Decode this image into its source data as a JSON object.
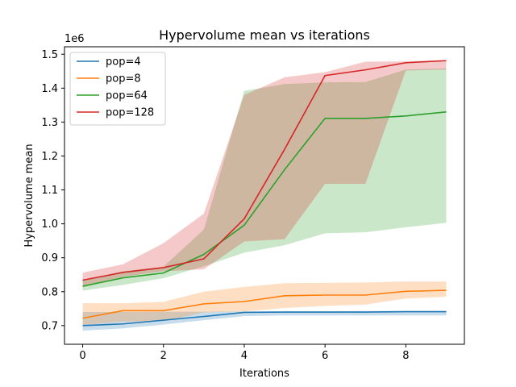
{
  "chart_data": {
    "type": "line",
    "title": "Hypervolume mean vs iterations",
    "xlabel": "Iterations",
    "ylabel": "Hypervolume mean",
    "y_offset_text": "1e6",
    "xlim": [
      -0.45,
      9.45
    ],
    "ylim": [
      0.645,
      1.522
    ],
    "x_ticks": [
      0,
      2,
      4,
      6,
      8
    ],
    "y_ticks": [
      0.7,
      0.8,
      0.9,
      1.0,
      1.1,
      1.2,
      1.3,
      1.4,
      1.5
    ],
    "y_tick_labels": [
      "0.7",
      "0.8",
      "0.9",
      "1.0",
      "1.1",
      "1.2",
      "1.3",
      "1.4",
      "1.5"
    ],
    "grid": false,
    "legend_position": "top-left",
    "x": [
      0,
      1,
      2,
      3,
      4,
      5,
      6,
      7,
      8,
      9
    ],
    "series": [
      {
        "name": "pop=4",
        "color": "#1f77b4",
        "values": [
          0.7,
          0.705,
          0.716,
          0.727,
          0.739,
          0.74,
          0.74,
          0.74,
          0.741,
          0.741
        ],
        "lower": [
          0.685,
          0.692,
          0.703,
          0.716,
          0.728,
          0.73,
          0.73,
          0.73,
          0.73,
          0.73
        ],
        "upper": [
          0.74,
          0.74,
          0.741,
          0.741,
          0.742,
          0.742,
          0.742,
          0.743,
          0.743,
          0.743
        ]
      },
      {
        "name": "pop=8",
        "color": "#ff7f0e",
        "values": [
          0.722,
          0.744,
          0.744,
          0.764,
          0.771,
          0.788,
          0.79,
          0.79,
          0.801,
          0.804
        ],
        "lower": [
          0.702,
          0.712,
          0.713,
          0.739,
          0.742,
          0.752,
          0.758,
          0.762,
          0.78,
          0.785
        ],
        "upper": [
          0.766,
          0.766,
          0.77,
          0.8,
          0.814,
          0.825,
          0.826,
          0.827,
          0.83,
          0.83
        ]
      },
      {
        "name": "pop=64",
        "color": "#2ca02c",
        "values": [
          0.816,
          0.841,
          0.855,
          0.91,
          0.996,
          1.16,
          1.311,
          1.311,
          1.318,
          1.33
        ],
        "lower": [
          0.803,
          0.82,
          0.84,
          0.875,
          0.915,
          0.937,
          0.972,
          0.975,
          0.99,
          1.003
        ],
        "upper": [
          0.834,
          0.86,
          0.874,
          0.983,
          1.392,
          1.412,
          1.417,
          1.418,
          1.455,
          1.458
        ]
      },
      {
        "name": "pop=128",
        "color": "#d62728",
        "values": [
          0.834,
          0.857,
          0.871,
          0.897,
          1.015,
          1.22,
          1.437,
          1.454,
          1.475,
          1.481
        ],
        "lower": [
          0.816,
          0.844,
          0.86,
          0.866,
          0.948,
          0.955,
          1.118,
          1.118,
          1.452,
          1.455
        ],
        "upper": [
          0.856,
          0.881,
          0.943,
          1.03,
          1.38,
          1.432,
          1.447,
          1.478,
          1.479,
          1.483
        ]
      }
    ]
  }
}
